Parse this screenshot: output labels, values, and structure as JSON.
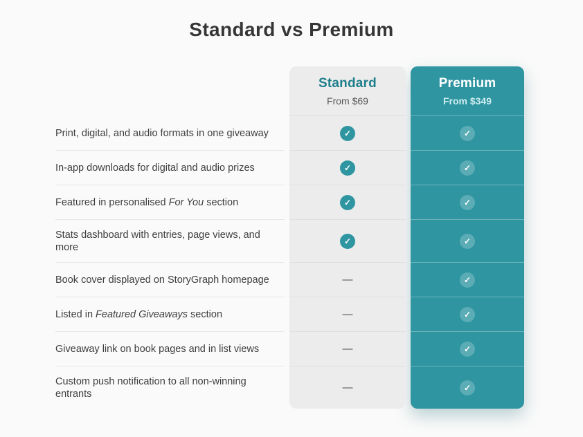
{
  "page": {
    "title": "Standard vs Premium"
  },
  "plans": [
    {
      "id": "standard",
      "name": "Standard",
      "price": "From $69"
    },
    {
      "id": "premium",
      "name": "Premium",
      "price": "From $349"
    }
  ],
  "features": [
    {
      "label": [
        {
          "text": "Print, digital, and audio formats in one giveaway"
        }
      ],
      "standard": "check",
      "premium": "check"
    },
    {
      "label": [
        {
          "text": "In-app downloads for digital and audio prizes"
        }
      ],
      "standard": "check",
      "premium": "check"
    },
    {
      "label": [
        {
          "text": "Featured in personalised "
        },
        {
          "text": "For You",
          "italic": true
        },
        {
          "text": " section"
        }
      ],
      "standard": "check",
      "premium": "check"
    },
    {
      "label": [
        {
          "text": "Stats dashboard with entries, page views, and more"
        }
      ],
      "standard": "check",
      "premium": "check"
    },
    {
      "label": [
        {
          "text": "Book cover displayed on StoryGraph homepage"
        }
      ],
      "standard": "dash",
      "premium": "check"
    },
    {
      "label": [
        {
          "text": "Listed in "
        },
        {
          "text": "Featured Giveaways",
          "italic": true
        },
        {
          "text": " section"
        }
      ],
      "standard": "dash",
      "premium": "check"
    },
    {
      "label": [
        {
          "text": "Giveaway link on book pages and in list views"
        }
      ],
      "standard": "dash",
      "premium": "check"
    },
    {
      "label": [
        {
          "text": "Custom push notification to all non-winning entrants"
        }
      ],
      "standard": "dash",
      "premium": "check"
    }
  ],
  "symbols": {
    "check": "✓",
    "dash": "—"
  },
  "colors": {
    "teal": "#2E95A1",
    "tealDark": "#1E7E8B",
    "tealDivider": "rgba(255,255,255,0.30)",
    "columnGray": "#ECECEC",
    "grayDivider": "#DFDFDF",
    "labelDivider": "#E6E6E6",
    "pageBg": "#FAFAFA",
    "textDark": "#363636",
    "label": "#3E3E3E",
    "priceGray": "#565656",
    "pricePremium": "#CDEDEF",
    "dash": "#4C4C4C"
  }
}
